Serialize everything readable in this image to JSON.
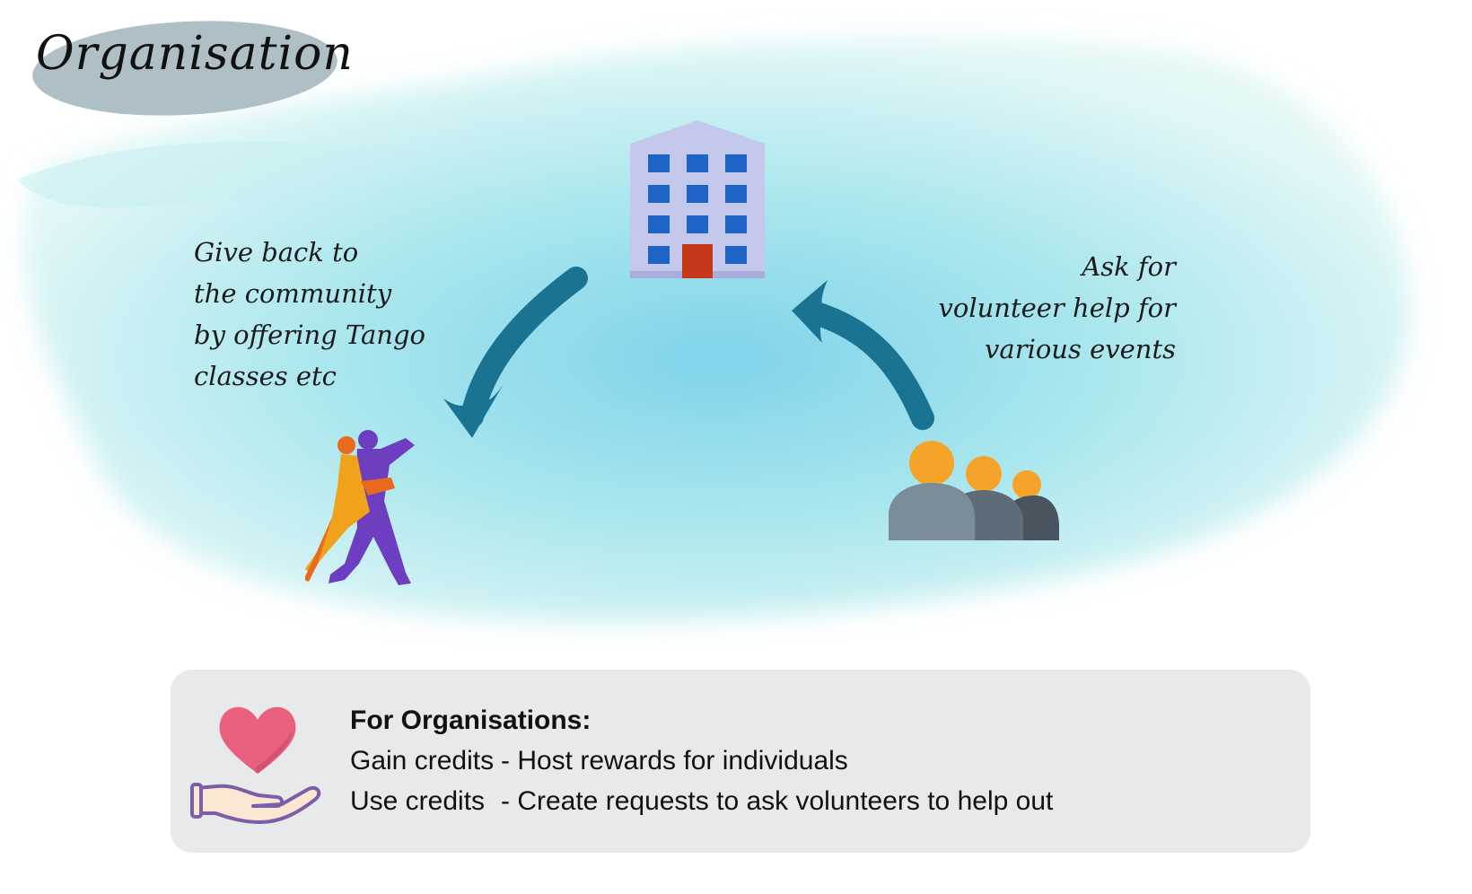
{
  "title": "Organisation",
  "left_note": {
    "lines": [
      "Give back to",
      "the community",
      "by offering Tango",
      "classes etc"
    ]
  },
  "right_note": {
    "lines": [
      "Ask for",
      "volunteer help for",
      "various events"
    ]
  },
  "icons": {
    "center": "office-building-icon",
    "left": "tango-dancers-icon",
    "right": "group-of-people-icon",
    "box": "heart-in-hand-icon"
  },
  "colors": {
    "arrow": "#1a7390",
    "wash": "#7fd6e8",
    "title_blob": "#aebfc6",
    "box_bg": "#e8e9eb",
    "window": "#1e63c6",
    "door": "#c5381a",
    "people": "#f6a32a"
  },
  "info_box": {
    "heading": "For Organisations:",
    "rows": [
      {
        "label": "Gain credits",
        "text": "- Host rewards for individuals"
      },
      {
        "label": "Use credits",
        "text": "- Create requests to ask volunteers to help out"
      }
    ]
  }
}
